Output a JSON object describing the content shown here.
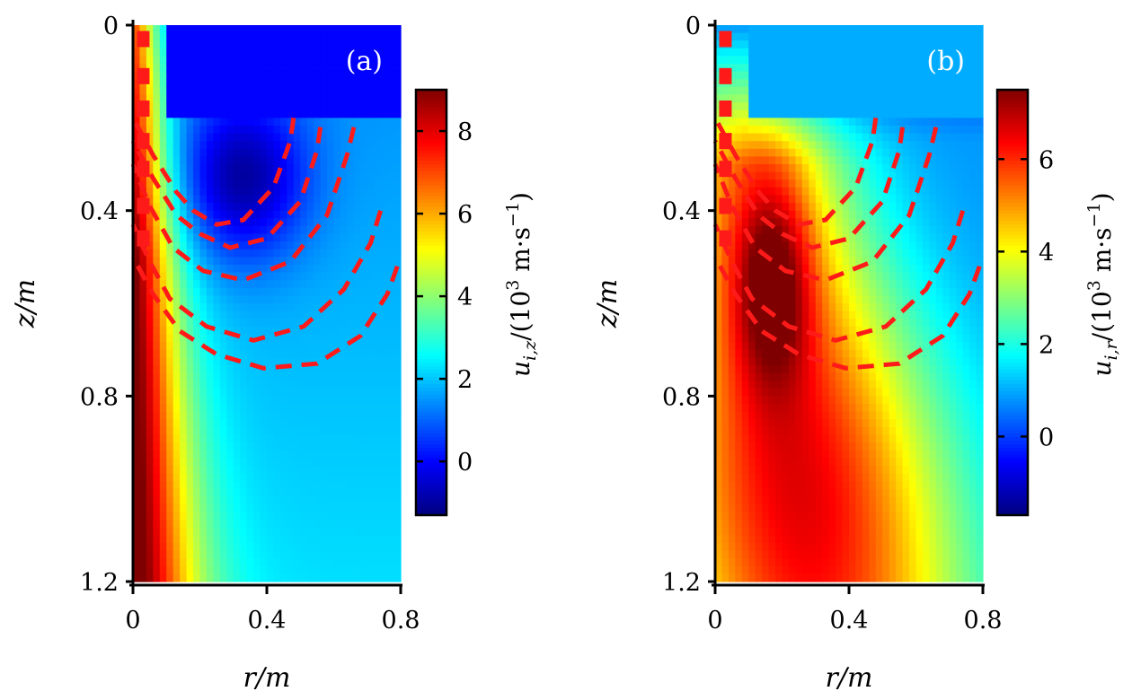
{
  "figure": "two-panel heat map",
  "colormap": [
    "#00007f",
    "#0000ff",
    "#007fff",
    "#00ffff",
    "#7fff7f",
    "#ffff00",
    "#ff7f00",
    "#ff0000",
    "#7f0000"
  ],
  "dash_color": "#ff1a1a",
  "chart_data": [
    {
      "type": "heatmap",
      "panel_label": "(a)",
      "xlabel": "r/m",
      "ylabel": "z/m",
      "colorbar_label": "u_{i,z}/(10^3 m·s^-1)",
      "colorbar_label_parts": {
        "base": "u",
        "sub": "i,z",
        "mid": "/(10",
        "exp1": "3",
        "unit": " m·s",
        "exp2": "−1",
        "close": ")"
      },
      "xlim": [
        0,
        0.8
      ],
      "ylim": [
        1.2,
        0
      ],
      "xticks": [
        0,
        0.4,
        0.8
      ],
      "xtick_labels": [
        "0",
        "0.4",
        "0.8"
      ],
      "yticks": [
        0,
        0.4,
        0.8,
        1.2
      ],
      "ytick_labels": [
        "0",
        "0.4",
        "0.8",
        "1.2"
      ],
      "clim": [
        -1.3,
        9.0
      ],
      "colorbar_ticks": [
        0,
        2,
        4,
        6,
        8
      ],
      "colorbar_tick_labels": [
        "0",
        "2",
        "4",
        "6",
        "8"
      ],
      "masked_region": {
        "r": [
          0.1,
          0.8
        ],
        "z": [
          0,
          0.2
        ],
        "value": 0.0
      },
      "field": "u_z",
      "dashed_contours": [
        {
          "r": [
            0.48,
            0.47,
            0.42,
            0.33,
            0.25,
            0.18,
            0.13,
            0.06,
            0.0
          ],
          "z": [
            0.2,
            0.25,
            0.35,
            0.42,
            0.43,
            0.4,
            0.36,
            0.28,
            0.2
          ]
        },
        {
          "r": [
            0.56,
            0.55,
            0.5,
            0.4,
            0.29,
            0.2,
            0.13,
            0.06,
            0.0
          ],
          "z": [
            0.22,
            0.27,
            0.38,
            0.46,
            0.48,
            0.45,
            0.41,
            0.33,
            0.25
          ]
        },
        {
          "r": [
            0.66,
            0.64,
            0.58,
            0.47,
            0.33,
            0.21,
            0.12,
            0.05,
            0.0
          ],
          "z": [
            0.22,
            0.28,
            0.41,
            0.51,
            0.55,
            0.53,
            0.48,
            0.39,
            0.3
          ]
        },
        {
          "r": [
            0.74,
            0.71,
            0.63,
            0.51,
            0.36,
            0.22,
            0.11,
            0.05,
            0.0
          ],
          "z": [
            0.4,
            0.47,
            0.57,
            0.65,
            0.68,
            0.65,
            0.59,
            0.51,
            0.43
          ]
        },
        {
          "r": [
            0.79,
            0.76,
            0.68,
            0.55,
            0.39,
            0.25,
            0.14,
            0.06,
            0.0
          ],
          "z": [
            0.52,
            0.58,
            0.67,
            0.73,
            0.74,
            0.71,
            0.66,
            0.58,
            0.5
          ]
        }
      ]
    },
    {
      "type": "heatmap",
      "panel_label": "(b)",
      "xlabel": "r/m",
      "ylabel": "z/m",
      "colorbar_label": "u_{i,r}/(10^3 m·s^-1)",
      "colorbar_label_parts": {
        "base": "u",
        "sub": "i,r",
        "mid": "/(10",
        "exp1": "3",
        "unit": " m·s",
        "exp2": "−1",
        "close": ")"
      },
      "xlim": [
        0,
        0.8
      ],
      "ylim": [
        1.2,
        0
      ],
      "xticks": [
        0,
        0.4,
        0.8
      ],
      "xtick_labels": [
        "0",
        "0.4",
        "0.8"
      ],
      "yticks": [
        0,
        0.4,
        0.8,
        1.2
      ],
      "ytick_labels": [
        "0",
        "0.4",
        "0.8",
        "1.2"
      ],
      "clim": [
        -1.7,
        7.5
      ],
      "colorbar_ticks": [
        0,
        2,
        4,
        6
      ],
      "colorbar_tick_labels": [
        "0",
        "2",
        "4",
        "6"
      ],
      "masked_region": {
        "r": [
          0.1,
          0.8
        ],
        "z": [
          0,
          0.2
        ],
        "value": 1.0
      },
      "field": "u_r",
      "dashed_contours": [
        {
          "r": [
            0.48,
            0.47,
            0.42,
            0.33,
            0.25,
            0.18,
            0.13,
            0.06,
            0.0
          ],
          "z": [
            0.2,
            0.25,
            0.35,
            0.42,
            0.43,
            0.4,
            0.36,
            0.28,
            0.2
          ]
        },
        {
          "r": [
            0.56,
            0.55,
            0.5,
            0.4,
            0.29,
            0.2,
            0.13,
            0.06,
            0.0
          ],
          "z": [
            0.22,
            0.27,
            0.38,
            0.46,
            0.48,
            0.45,
            0.41,
            0.33,
            0.25
          ]
        },
        {
          "r": [
            0.66,
            0.64,
            0.58,
            0.47,
            0.33,
            0.21,
            0.12,
            0.05,
            0.0
          ],
          "z": [
            0.22,
            0.28,
            0.41,
            0.51,
            0.55,
            0.53,
            0.48,
            0.39,
            0.3
          ]
        },
        {
          "r": [
            0.74,
            0.71,
            0.63,
            0.51,
            0.36,
            0.22,
            0.11,
            0.05,
            0.0
          ],
          "z": [
            0.4,
            0.47,
            0.57,
            0.65,
            0.68,
            0.65,
            0.59,
            0.51,
            0.43
          ]
        },
        {
          "r": [
            0.79,
            0.76,
            0.68,
            0.55,
            0.39,
            0.25,
            0.14,
            0.06,
            0.0
          ],
          "z": [
            0.52,
            0.58,
            0.67,
            0.73,
            0.74,
            0.71,
            0.66,
            0.58,
            0.5
          ]
        }
      ]
    }
  ]
}
